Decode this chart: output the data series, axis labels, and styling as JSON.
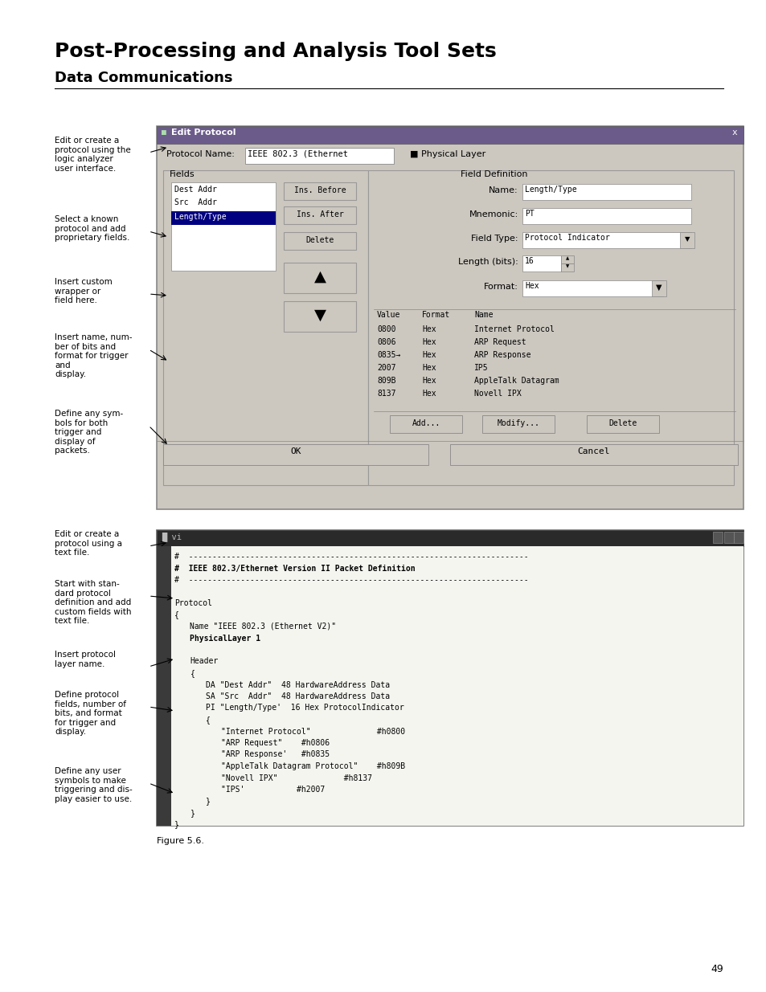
{
  "title1": "Post-Processing and Analysis Tool Sets",
  "title2": "Data Communications",
  "bg_color": "#ffffff",
  "page_number": "49",
  "figure_label": "Figure 5.6.",
  "dialog_title": "Edit Protocol",
  "dialog_title_bar_color": "#6b5b8b",
  "dialog_bg": "#ccc8c0",
  "vi_bg": "#fafafa",
  "vi_title_color": "#2a2a2a"
}
